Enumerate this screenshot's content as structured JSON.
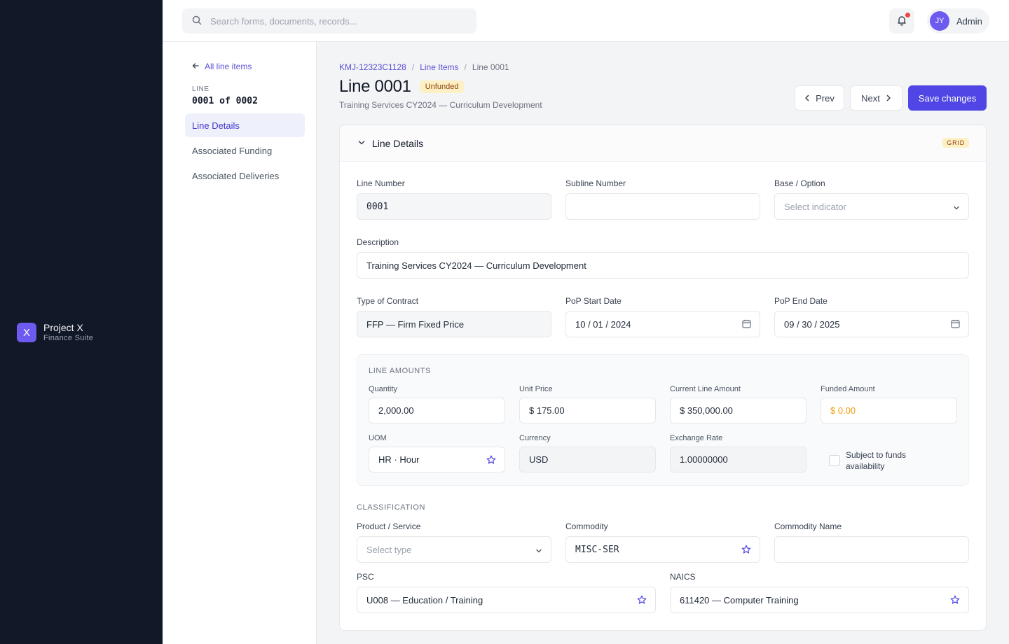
{
  "app": {
    "logo_letter": "X",
    "name": "Project X",
    "subtitle": "Finance Suite"
  },
  "topbar": {
    "search_placeholder": "Search forms, documents, records...",
    "user_initials": "JY",
    "user_name": "Admin"
  },
  "subnav": {
    "back_label": "All line items",
    "line_label": "LINE",
    "line_count": "0001 of 0002",
    "items": [
      {
        "label": "Line Details",
        "active": true
      },
      {
        "label": "Associated Funding",
        "active": false
      },
      {
        "label": "Associated Deliveries",
        "active": false
      }
    ]
  },
  "breadcrumb": {
    "contract": "KMJ-12323C1128",
    "section": "Line Items",
    "current": "Line 0001",
    "separator": "/"
  },
  "header": {
    "title": "Line 0001",
    "status_badge": "Unfunded",
    "subtitle": "Training Services CY2024 — Curriculum Development",
    "prev_label": "Prev",
    "next_label": "Next",
    "save_label": "Save changes"
  },
  "card": {
    "title": "Line Details",
    "tag": "GRID"
  },
  "fields": {
    "line_number": {
      "label": "Line Number",
      "value": "0001"
    },
    "subline_number": {
      "label": "Subline Number",
      "value": ""
    },
    "base_option": {
      "label": "Base / Option",
      "placeholder": "Select indicator"
    },
    "description": {
      "label": "Description",
      "value": "Training Services CY2024 — Curriculum Development"
    },
    "contract_type": {
      "label": "Type of Contract",
      "value": "FFP — Firm Fixed Price"
    },
    "pop_start": {
      "label": "PoP Start Date",
      "value": "10 / 01 / 2024"
    },
    "pop_end": {
      "label": "PoP End Date",
      "value": "09 / 30 / 2025"
    }
  },
  "amounts": {
    "heading": "LINE AMOUNTS",
    "quantity": {
      "label": "Quantity",
      "value": "2,000.00"
    },
    "unit_price": {
      "label": "Unit Price",
      "value": "$ 175.00"
    },
    "current_amount": {
      "label": "Current Line Amount",
      "value": "$ 350,000.00"
    },
    "funded_amount": {
      "label": "Funded Amount",
      "value": "$ 0.00"
    },
    "uom": {
      "label": "UOM",
      "value": "HR · Hour"
    },
    "currency": {
      "label": "Currency",
      "value": "USD"
    },
    "exchange_rate": {
      "label": "Exchange Rate",
      "value": "1.00000000"
    },
    "funds_check": {
      "label": "Subject to funds availability",
      "checked": false
    }
  },
  "classification": {
    "heading": "CLASSIFICATION",
    "product_service": {
      "label": "Product / Service",
      "placeholder": "Select type"
    },
    "commodity": {
      "label": "Commodity",
      "value": "MISC-SER"
    },
    "commodity_name": {
      "label": "Commodity Name",
      "value": ""
    },
    "psc": {
      "label": "PSC",
      "value": "U008 — Education / Training"
    },
    "naics": {
      "label": "NAICS",
      "value": "611420 — Computer Training"
    }
  },
  "colors": {
    "accent": "#4f46e5",
    "rail": "#111827",
    "warning_text": "#f59e0b",
    "badge_bg": "#fdf0c4"
  }
}
